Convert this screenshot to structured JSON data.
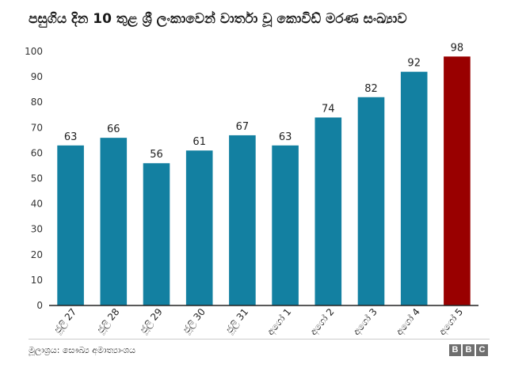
{
  "chart_data": {
    "type": "bar",
    "title": "පසුගිය දින 10 තුළ ශ්‍රී ලංකාවෙන් වාර්තා වූ කොවිඩ් මරණ සංඛ්‍යාව",
    "categories": [
      "ජූලි 27",
      "ජූලි 28",
      "ජූලි 29",
      "ජූලි 30",
      "ජූලි 31",
      "අගෝ 1",
      "අගෝ 2",
      "අගෝ 3",
      "අගෝ 4",
      "අගෝ 5"
    ],
    "values": [
      63,
      66,
      56,
      61,
      67,
      63,
      74,
      82,
      92,
      98
    ],
    "highlight_index": 9,
    "ylim": [
      0,
      100
    ],
    "yticks": [
      0,
      10,
      20,
      30,
      40,
      50,
      60,
      70,
      80,
      90,
      100
    ],
    "grid": false,
    "xlabel": "",
    "ylabel": "",
    "colors": {
      "bar": "#1380a1",
      "highlight": "#990000",
      "axis": "#222222"
    }
  },
  "footer": {
    "source": "මූලාශ්‍රය: සෞඛ්‍ය අමාත්‍යාංශය",
    "logo_letters": [
      "B",
      "B",
      "C"
    ]
  }
}
